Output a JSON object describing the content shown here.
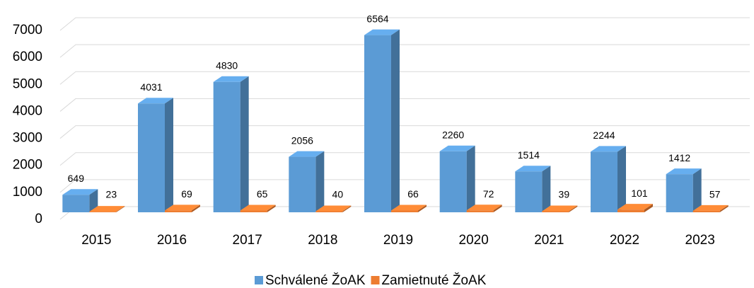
{
  "chart_data": {
    "type": "bar3d",
    "categories": [
      "2015",
      "2016",
      "2017",
      "2018",
      "2019",
      "2020",
      "2021",
      "2022",
      "2023"
    ],
    "series": [
      {
        "name": "Schválené ŽoAK",
        "color": "#5b9bd5",
        "values": [
          649,
          4031,
          4830,
          2056,
          6564,
          2260,
          1514,
          2244,
          1412
        ]
      },
      {
        "name": "Zamietnuté ŽoAK",
        "color": "#ed7d31",
        "values": [
          23,
          69,
          65,
          40,
          66,
          72,
          39,
          101,
          57
        ]
      }
    ],
    "ylim": [
      0,
      7000
    ],
    "yticks": [
      0,
      1000,
      2000,
      3000,
      4000,
      5000,
      6000,
      7000
    ],
    "grid": true,
    "legend": "bottom"
  }
}
